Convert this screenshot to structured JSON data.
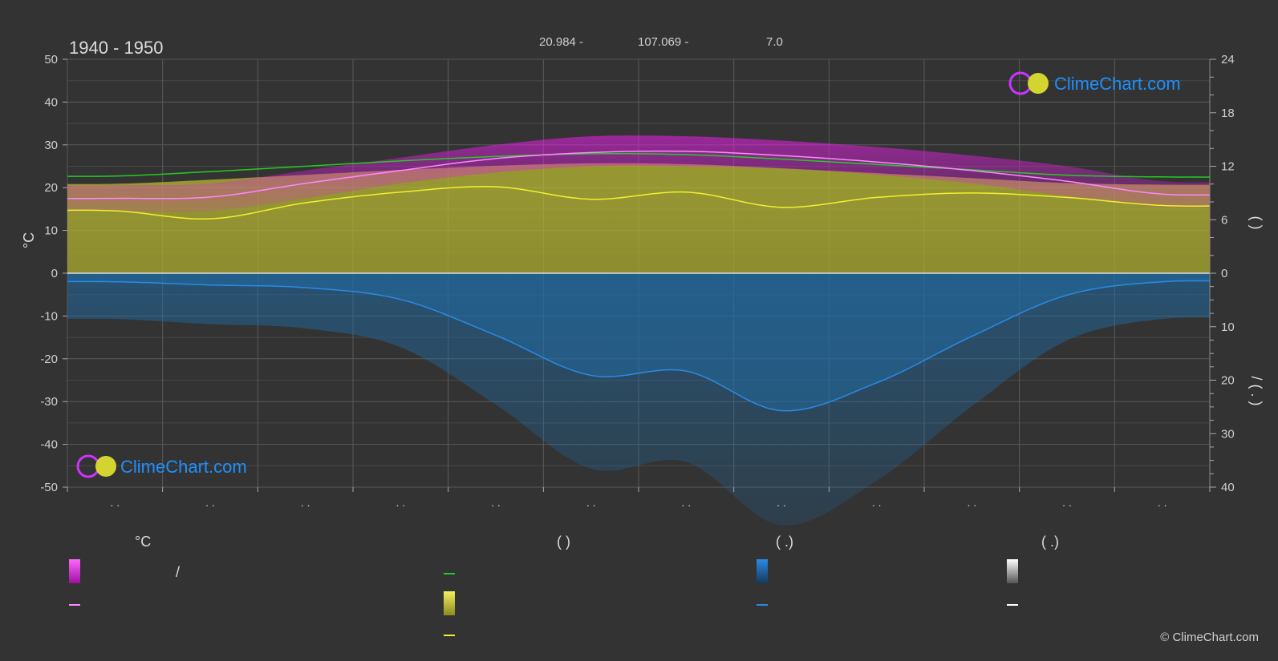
{
  "header": {
    "period": "1940 - 1950",
    "lat_text": "20.984 -",
    "lon_text": "107.069 -",
    "elev_text": "7.0"
  },
  "brand": {
    "name": "ClimeChart.com",
    "copyright": "© ClimeChart.com"
  },
  "colors": {
    "background": "#333333",
    "temp_range": "#e020e0",
    "temp_mean": "#ff88ff",
    "daylight": "#22cc22",
    "sunshine_fill": "#c8c832",
    "sunshine_line": "#f0f030",
    "rain_fill": "#1e6eaa",
    "rain_line": "#2a8ae6",
    "brand_blue": "#1e90ff"
  },
  "chart_data": {
    "type": "area",
    "months": 12,
    "x_tick_labels": [
      ". .",
      ". .",
      ". .",
      ". .",
      ". .",
      ". .",
      ". .",
      ". .",
      ". .",
      ". .",
      ". .",
      ". ."
    ],
    "left_axis": {
      "label": "°C",
      "range": [
        -50,
        50
      ],
      "ticks": [
        50,
        40,
        30,
        20,
        10,
        0,
        -10,
        -20,
        -30,
        -40,
        -50
      ]
    },
    "right_axis_top": {
      "range": [
        0,
        24
      ],
      "ticks": [
        24,
        18,
        12,
        6,
        0
      ],
      "label": "(      )"
    },
    "right_axis_bottom": {
      "range": [
        0,
        40
      ],
      "ticks": [
        0,
        10,
        20,
        30,
        40
      ],
      "label": "/    ( . )"
    },
    "series": [
      {
        "key": "temp_mean",
        "unit": "°C",
        "values": [
          17.5,
          17.8,
          21.0,
          24.0,
          26.8,
          28.2,
          28.5,
          27.5,
          26.0,
          24.0,
          21.5,
          18.5
        ]
      },
      {
        "key": "temp_max",
        "unit": "°C",
        "values": [
          20.5,
          21.0,
          24.0,
          27.0,
          30.0,
          32.0,
          32.0,
          31.0,
          29.5,
          27.5,
          25.0,
          21.5
        ]
      },
      {
        "key": "temp_min",
        "unit": "°C",
        "values": [
          14.5,
          14.5,
          17.5,
          21.0,
          23.5,
          25.0,
          25.0,
          24.5,
          23.0,
          21.0,
          18.0,
          15.5
        ]
      },
      {
        "key": "daylight",
        "unit": "h",
        "values": [
          10.9,
          11.4,
          12.0,
          12.6,
          13.1,
          13.4,
          13.3,
          12.8,
          12.2,
          11.6,
          11.0,
          10.8
        ]
      },
      {
        "key": "sunshine",
        "unit": "h",
        "values": [
          7.0,
          6.1,
          7.9,
          9.1,
          9.7,
          8.3,
          9.1,
          7.4,
          8.5,
          9.0,
          8.5,
          7.6
        ]
      },
      {
        "key": "rain",
        "unit": "mm",
        "values": [
          1.6,
          2.2,
          2.7,
          4.9,
          11.6,
          19.1,
          18.3,
          25.7,
          20.5,
          11.8,
          4.1,
          1.6
        ]
      }
    ]
  },
  "legend": {
    "col1_header": "°C",
    "col1_range_sep": "/",
    "col2_header": "(          )",
    "col3_header": "(   .)",
    "col4_header": "(   .)"
  }
}
